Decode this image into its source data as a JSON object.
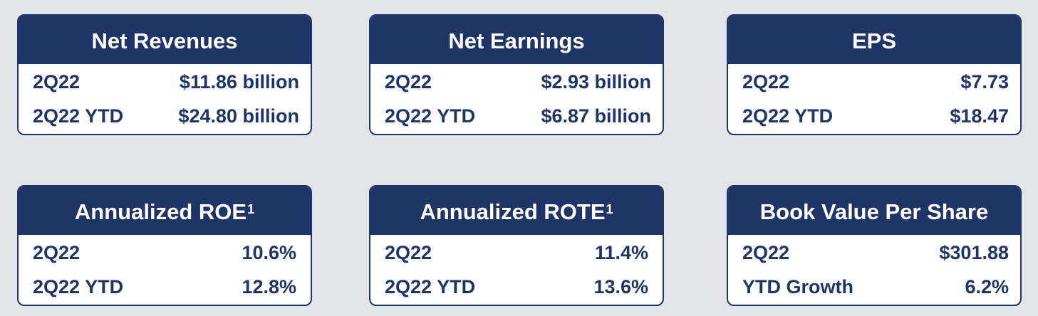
{
  "cards": [
    {
      "title": "Net Revenues",
      "superscript": "",
      "rows": [
        {
          "label": "2Q22",
          "value": "$11.86 billion"
        },
        {
          "label": "2Q22 YTD",
          "value": "$24.80 billion"
        }
      ]
    },
    {
      "title": "Net Earnings",
      "superscript": "",
      "rows": [
        {
          "label": "2Q22",
          "value": "$2.93 billion"
        },
        {
          "label": "2Q22 YTD",
          "value": "$6.87 billion"
        }
      ]
    },
    {
      "title": "EPS",
      "superscript": "",
      "rows": [
        {
          "label": "2Q22",
          "value": "$7.73"
        },
        {
          "label": "2Q22 YTD",
          "value": "$18.47"
        }
      ]
    },
    {
      "title": "Annualized ROE",
      "superscript": "1",
      "rows": [
        {
          "label": "2Q22",
          "value": "10.6%"
        },
        {
          "label": "2Q22 YTD",
          "value": "12.8%"
        }
      ]
    },
    {
      "title": "Annualized ROTE",
      "superscript": "1",
      "rows": [
        {
          "label": "2Q22",
          "value": "11.4%"
        },
        {
          "label": "2Q22 YTD",
          "value": "13.6%"
        }
      ]
    },
    {
      "title": "Book Value Per Share",
      "superscript": "",
      "rows": [
        {
          "label": "2Q22",
          "value": "$301.88"
        },
        {
          "label": "YTD Growth",
          "value": "6.2%"
        }
      ]
    }
  ],
  "colors": {
    "navy": "#1f3566",
    "background": "#e4e5e9",
    "card_body": "#ffffff"
  }
}
